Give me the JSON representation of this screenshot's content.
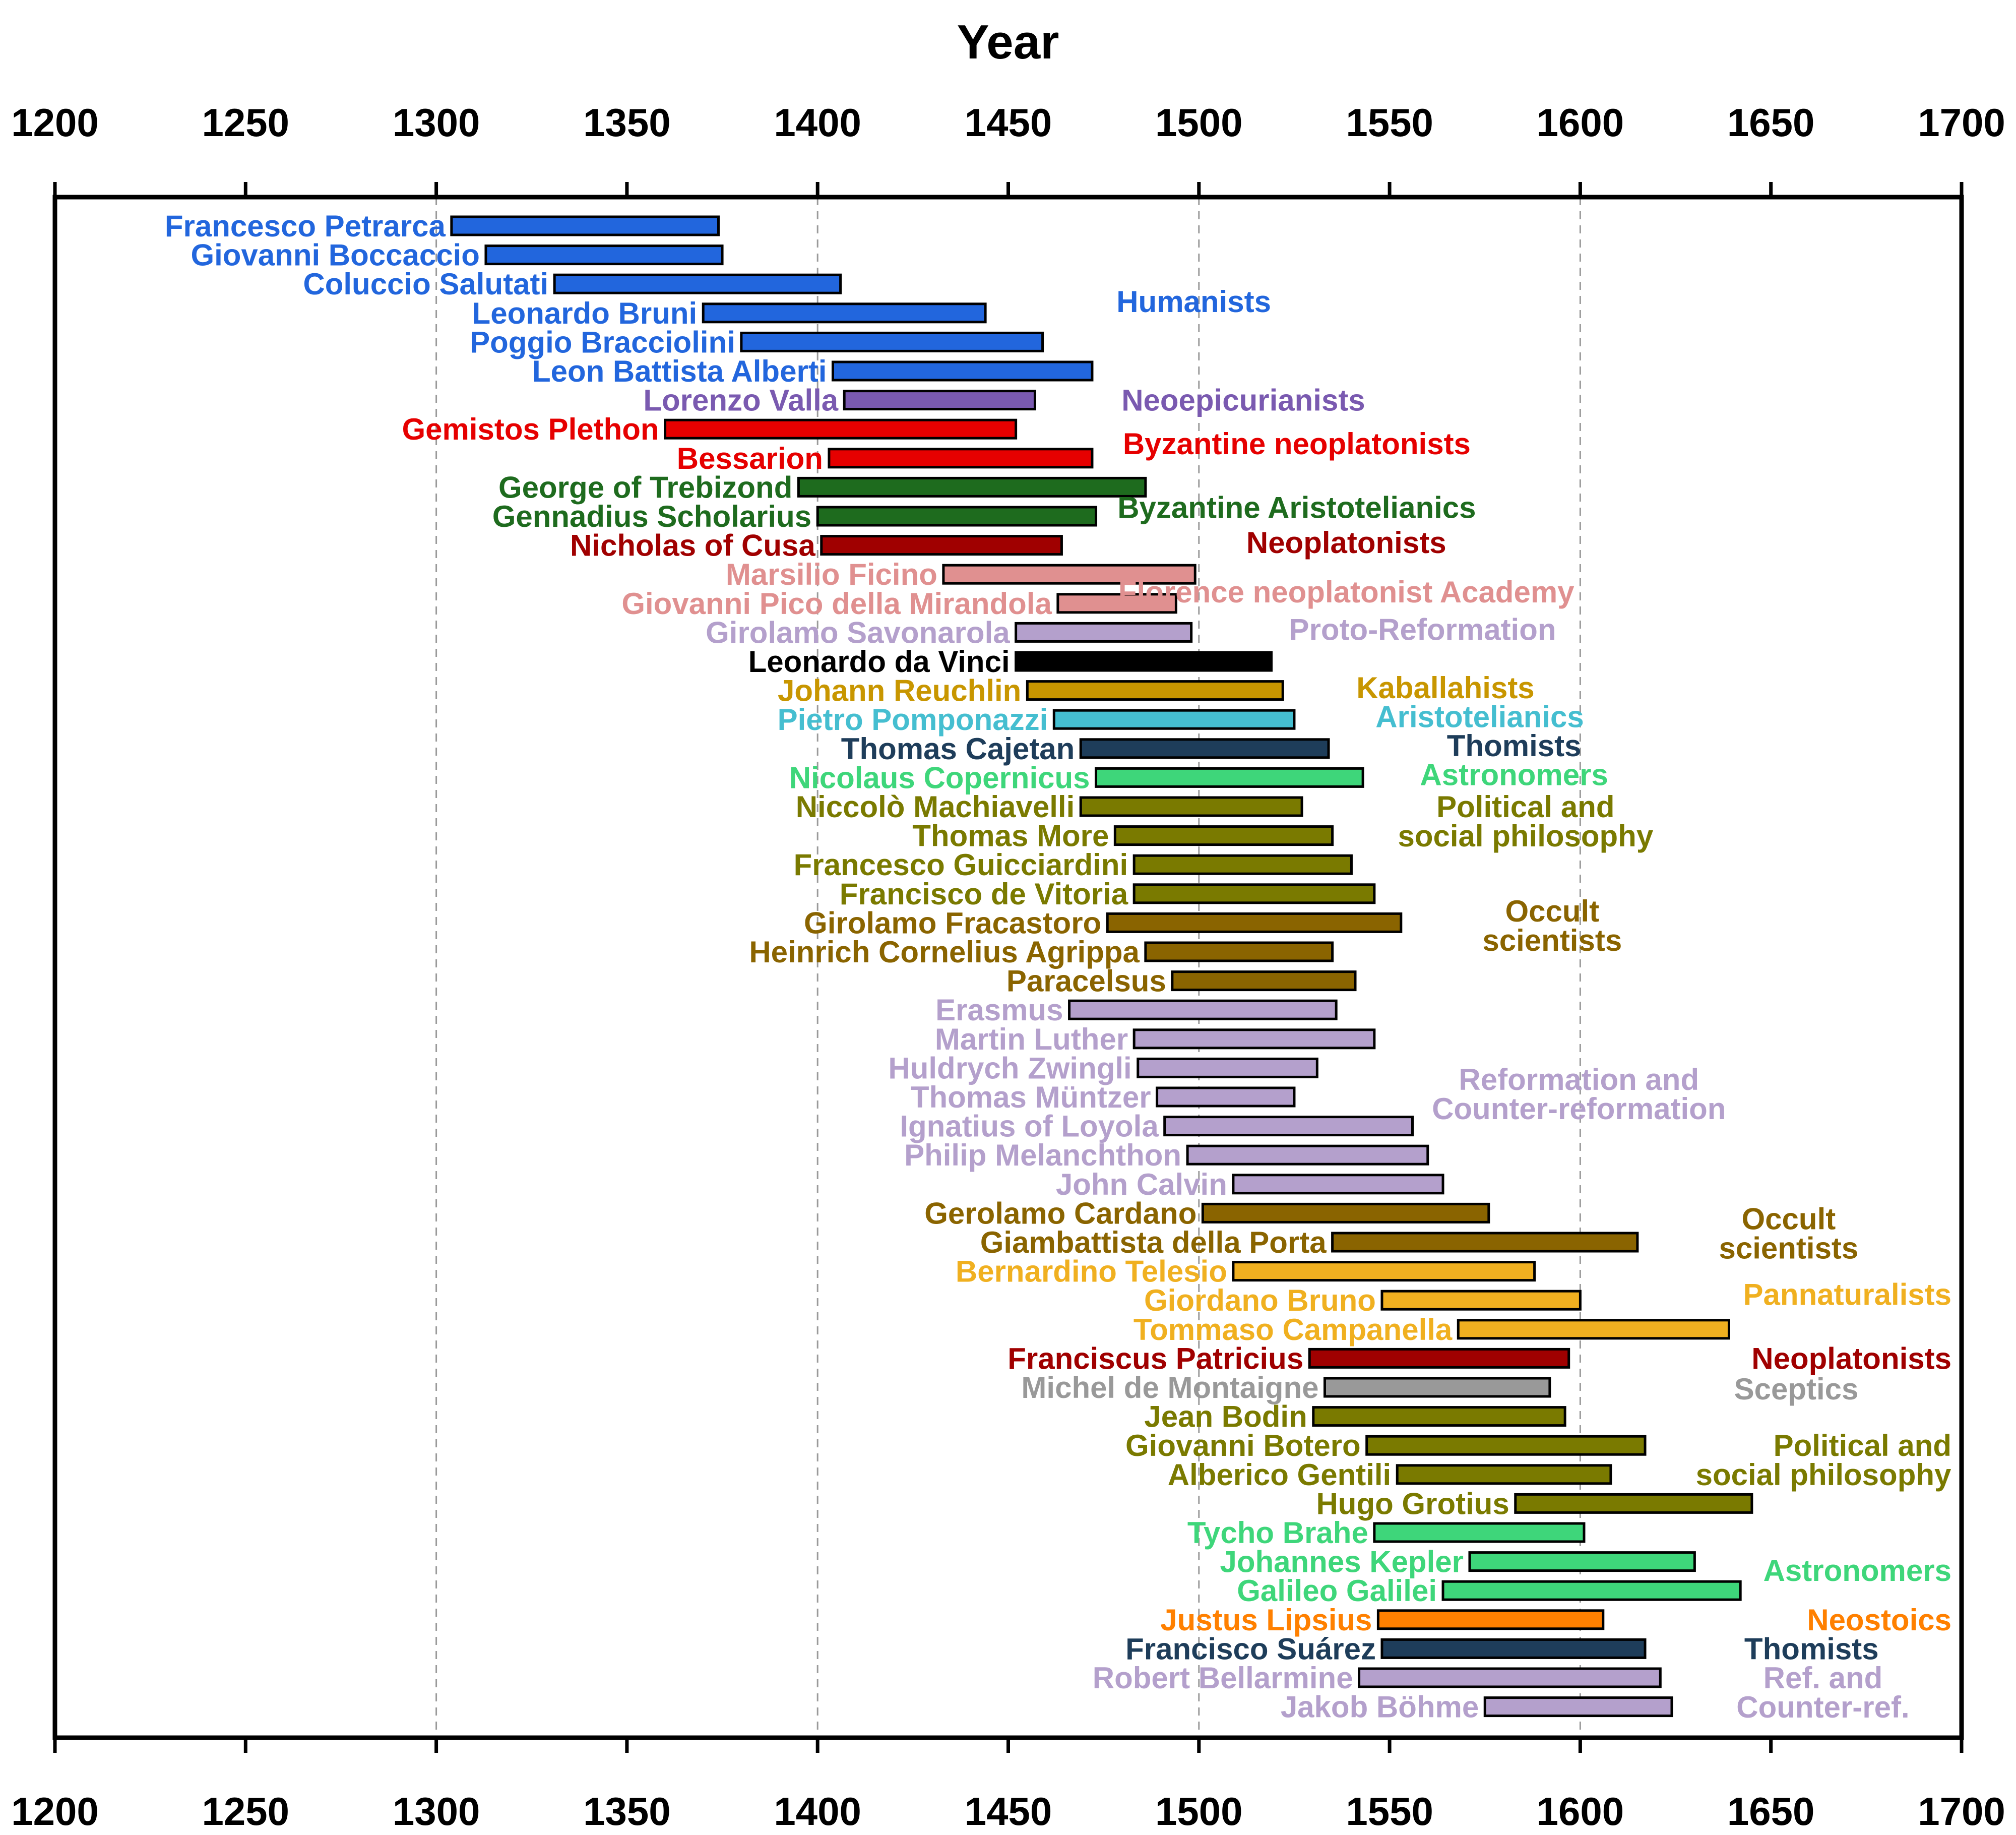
{
  "chart_data": {
    "type": "bar",
    "orientation": "horizontal-timeline",
    "title": "",
    "xlabel": "Year",
    "xlim": [
      1200,
      1700
    ],
    "xticks": [
      1200,
      1250,
      1300,
      1350,
      1400,
      1450,
      1500,
      1550,
      1600,
      1650,
      1700
    ],
    "grid_x": [
      1300,
      1400,
      1500,
      1600
    ],
    "colors": {
      "humanists": "#2266dd",
      "neoepicurianists": "#7a5ab0",
      "byzantine_neoplatonists": "#e60000",
      "byzantine_aristotelianics": "#1e6b1e",
      "neoplatonists": "#a00000",
      "florence": "#e09090",
      "reformation": "#b4a0cc",
      "davinci": "#000000",
      "kaballahists": "#c89600",
      "aristotelianics": "#45bed0",
      "thomists": "#1e3d5a",
      "astronomers": "#3ed67a",
      "political": "#7a7a00",
      "occult": "#8a6400",
      "pannaturalists": "#f0b020",
      "sceptics": "#999999",
      "neostoics": "#ff8000"
    },
    "series": [
      {
        "name": "Francesco Petrarca",
        "start": 1304,
        "end": 1374,
        "color": "#2266dd"
      },
      {
        "name": "Giovanni Boccaccio",
        "start": 1313,
        "end": 1375,
        "color": "#2266dd"
      },
      {
        "name": "Coluccio Salutati",
        "start": 1331,
        "end": 1406,
        "color": "#2266dd"
      },
      {
        "name": "Leonardo Bruni",
        "start": 1370,
        "end": 1444,
        "color": "#2266dd"
      },
      {
        "name": "Poggio Bracciolini",
        "start": 1380,
        "end": 1459,
        "color": "#2266dd"
      },
      {
        "name": "Leon Battista Alberti",
        "start": 1404,
        "end": 1472,
        "color": "#2266dd"
      },
      {
        "name": "Lorenzo Valla",
        "start": 1407,
        "end": 1457,
        "color": "#7a5ab0"
      },
      {
        "name": "Gemistos Plethon",
        "start": 1360,
        "end": 1452,
        "color": "#e60000"
      },
      {
        "name": "Bessarion",
        "start": 1403,
        "end": 1472,
        "color": "#e60000"
      },
      {
        "name": "George of Trebizond",
        "start": 1395,
        "end": 1486,
        "color": "#1e6b1e"
      },
      {
        "name": "Gennadius Scholarius",
        "start": 1400,
        "end": 1473,
        "color": "#1e6b1e"
      },
      {
        "name": "Nicholas of Cusa",
        "start": 1401,
        "end": 1464,
        "color": "#a00000"
      },
      {
        "name": "Marsilio Ficino",
        "start": 1433,
        "end": 1499,
        "color": "#e09090"
      },
      {
        "name": "Giovanni Pico della Mirandola",
        "start": 1463,
        "end": 1494,
        "color": "#e09090"
      },
      {
        "name": "Girolamo Savonarola",
        "start": 1452,
        "end": 1498,
        "color": "#b4a0cc"
      },
      {
        "name": "Leonardo da Vinci",
        "start": 1452,
        "end": 1519,
        "color": "#000000"
      },
      {
        "name": "Johann Reuchlin",
        "start": 1455,
        "end": 1522,
        "color": "#c89600"
      },
      {
        "name": "Pietro Pomponazzi",
        "start": 1462,
        "end": 1525,
        "color": "#45bed0"
      },
      {
        "name": "Thomas Cajetan",
        "start": 1469,
        "end": 1534,
        "color": "#1e3d5a"
      },
      {
        "name": "Nicolaus Copernicus",
        "start": 1473,
        "end": 1543,
        "color": "#3ed67a"
      },
      {
        "name": "Niccolò Machiavelli",
        "start": 1469,
        "end": 1527,
        "color": "#7a7a00"
      },
      {
        "name": "Thomas More",
        "start": 1478,
        "end": 1535,
        "color": "#7a7a00"
      },
      {
        "name": "Francesco Guicciardini",
        "start": 1483,
        "end": 1540,
        "color": "#7a7a00"
      },
      {
        "name": "Francisco de Vitoria",
        "start": 1483,
        "end": 1546,
        "color": "#7a7a00"
      },
      {
        "name": "Girolamo Fracastoro",
        "start": 1476,
        "end": 1553,
        "color": "#8a6400"
      },
      {
        "name": "Heinrich Cornelius Agrippa",
        "start": 1486,
        "end": 1535,
        "color": "#8a6400"
      },
      {
        "name": "Paracelsus",
        "start": 1493,
        "end": 1541,
        "color": "#8a6400"
      },
      {
        "name": "Erasmus",
        "start": 1466,
        "end": 1536,
        "color": "#b4a0cc"
      },
      {
        "name": "Martin Luther",
        "start": 1483,
        "end": 1546,
        "color": "#b4a0cc"
      },
      {
        "name": "Huldrych Zwingli",
        "start": 1484,
        "end": 1531,
        "color": "#b4a0cc"
      },
      {
        "name": "Thomas Müntzer",
        "start": 1489,
        "end": 1525,
        "color": "#b4a0cc"
      },
      {
        "name": "Ignatius of Loyola",
        "start": 1491,
        "end": 1556,
        "color": "#b4a0cc"
      },
      {
        "name": "Philip Melanchthon",
        "start": 1497,
        "end": 1560,
        "color": "#b4a0cc"
      },
      {
        "name": "John Calvin",
        "start": 1509,
        "end": 1564,
        "color": "#b4a0cc"
      },
      {
        "name": "Gerolamo Cardano",
        "start": 1501,
        "end": 1576,
        "color": "#8a6400"
      },
      {
        "name": "Giambattista della Porta",
        "start": 1535,
        "end": 1615,
        "color": "#8a6400"
      },
      {
        "name": "Bernardino Telesio",
        "start": 1509,
        "end": 1588,
        "color": "#f0b020"
      },
      {
        "name": "Giordano Bruno",
        "start": 1548,
        "end": 1600,
        "color": "#f0b020"
      },
      {
        "name": "Tommaso Campanella",
        "start": 1568,
        "end": 1639,
        "color": "#f0b020"
      },
      {
        "name": "Franciscus Patricius",
        "start": 1529,
        "end": 1597,
        "color": "#a00000"
      },
      {
        "name": "Michel de Montaigne",
        "start": 1533,
        "end": 1592,
        "color": "#999999"
      },
      {
        "name": "Jean Bodin",
        "start": 1530,
        "end": 1596,
        "color": "#7a7a00"
      },
      {
        "name": "Giovanni Botero",
        "start": 1544,
        "end": 1617,
        "color": "#7a7a00"
      },
      {
        "name": "Alberico Gentili",
        "start": 1552,
        "end": 1608,
        "color": "#7a7a00"
      },
      {
        "name": "Hugo Grotius",
        "start": 1583,
        "end": 1645,
        "color": "#7a7a00"
      },
      {
        "name": "Tycho Brahe",
        "start": 1546,
        "end": 1601,
        "color": "#3ed67a"
      },
      {
        "name": "Johannes Kepler",
        "start": 1571,
        "end": 1630,
        "color": "#3ed67a"
      },
      {
        "name": "Galileo Galilei",
        "start": 1564,
        "end": 1642,
        "color": "#3ed67a"
      },
      {
        "name": "Justus Lipsius",
        "start": 1547,
        "end": 1606,
        "color": "#ff8000"
      },
      {
        "name": "Francisco Suárez",
        "start": 1548,
        "end": 1617,
        "color": "#1e3d5a"
      },
      {
        "name": "Robert Bellarmine",
        "start": 1542,
        "end": 1621,
        "color": "#b4a0cc"
      },
      {
        "name": "Jakob Böhme",
        "start": 1575,
        "end": 1624,
        "color": "#b4a0cc"
      }
    ],
    "groups": [
      {
        "lines": [
          "Humanists"
        ],
        "color": "#2266dd",
        "row": 2.6
      },
      {
        "lines": [
          "Neoepicurianists"
        ],
        "color": "#7a5ab0",
        "row": 6
      },
      {
        "lines": [
          "Byzantine neoplatonists"
        ],
        "color": "#e60000",
        "row": 7.5
      },
      {
        "lines": [
          "Byzantine Aristotelianics"
        ],
        "color": "#1e6b1e",
        "row": 9.7
      },
      {
        "lines": [
          "Neoplatonists"
        ],
        "color": "#a00000",
        "row": 10.9
      },
      {
        "lines": [
          "Florence neoplatonist Academy"
        ],
        "color": "#e09090",
        "row": 12.6
      },
      {
        "lines": [
          "Proto-Reformation"
        ],
        "color": "#b4a0cc",
        "row": 13.9
      },
      {
        "lines": [
          "Kaballahists"
        ],
        "color": "#c89600",
        "row": 15.9
      },
      {
        "lines": [
          "Aristotelianics"
        ],
        "color": "#45bed0",
        "row": 16.9
      },
      {
        "lines": [
          "Thomists"
        ],
        "color": "#1e3d5a",
        "row": 17.9
      },
      {
        "lines": [
          "Astronomers"
        ],
        "color": "#3ed67a",
        "row": 18.9
      },
      {
        "lines": [
          "Political and",
          "social philosophy"
        ],
        "color": "#7a7a00",
        "row": 20.5
      },
      {
        "lines": [
          "Occult",
          "scientists"
        ],
        "color": "#8a6400",
        "row": 24.1
      },
      {
        "lines": [
          "Reformation and",
          "Counter-reformation"
        ],
        "color": "#b4a0cc",
        "row": 29.9
      },
      {
        "lines": [
          "Occult",
          "scientists"
        ],
        "color": "#8a6400",
        "row": 34.7
      },
      {
        "lines": [
          "Pannaturalists"
        ],
        "color": "#f0b020",
        "row": 36.8
      },
      {
        "lines": [
          "Neoplatonists"
        ],
        "color": "#a00000",
        "row": 39
      },
      {
        "lines": [
          "Sceptics"
        ],
        "color": "#999999",
        "row": 40.05
      },
      {
        "lines": [
          "Political and",
          "social philosophy"
        ],
        "color": "#7a7a00",
        "row": 42.5
      },
      {
        "lines": [
          "Astronomers"
        ],
        "color": "#3ed67a",
        "row": 46.3
      },
      {
        "lines": [
          "Neostoics"
        ],
        "color": "#ff8000",
        "row": 48
      },
      {
        "lines": [
          "Thomists"
        ],
        "color": "#1e3d5a",
        "row": 49
      },
      {
        "lines": [
          "Ref. and",
          "Counter-ref."
        ],
        "color": "#b4a0cc",
        "row": 50.5
      }
    ]
  }
}
